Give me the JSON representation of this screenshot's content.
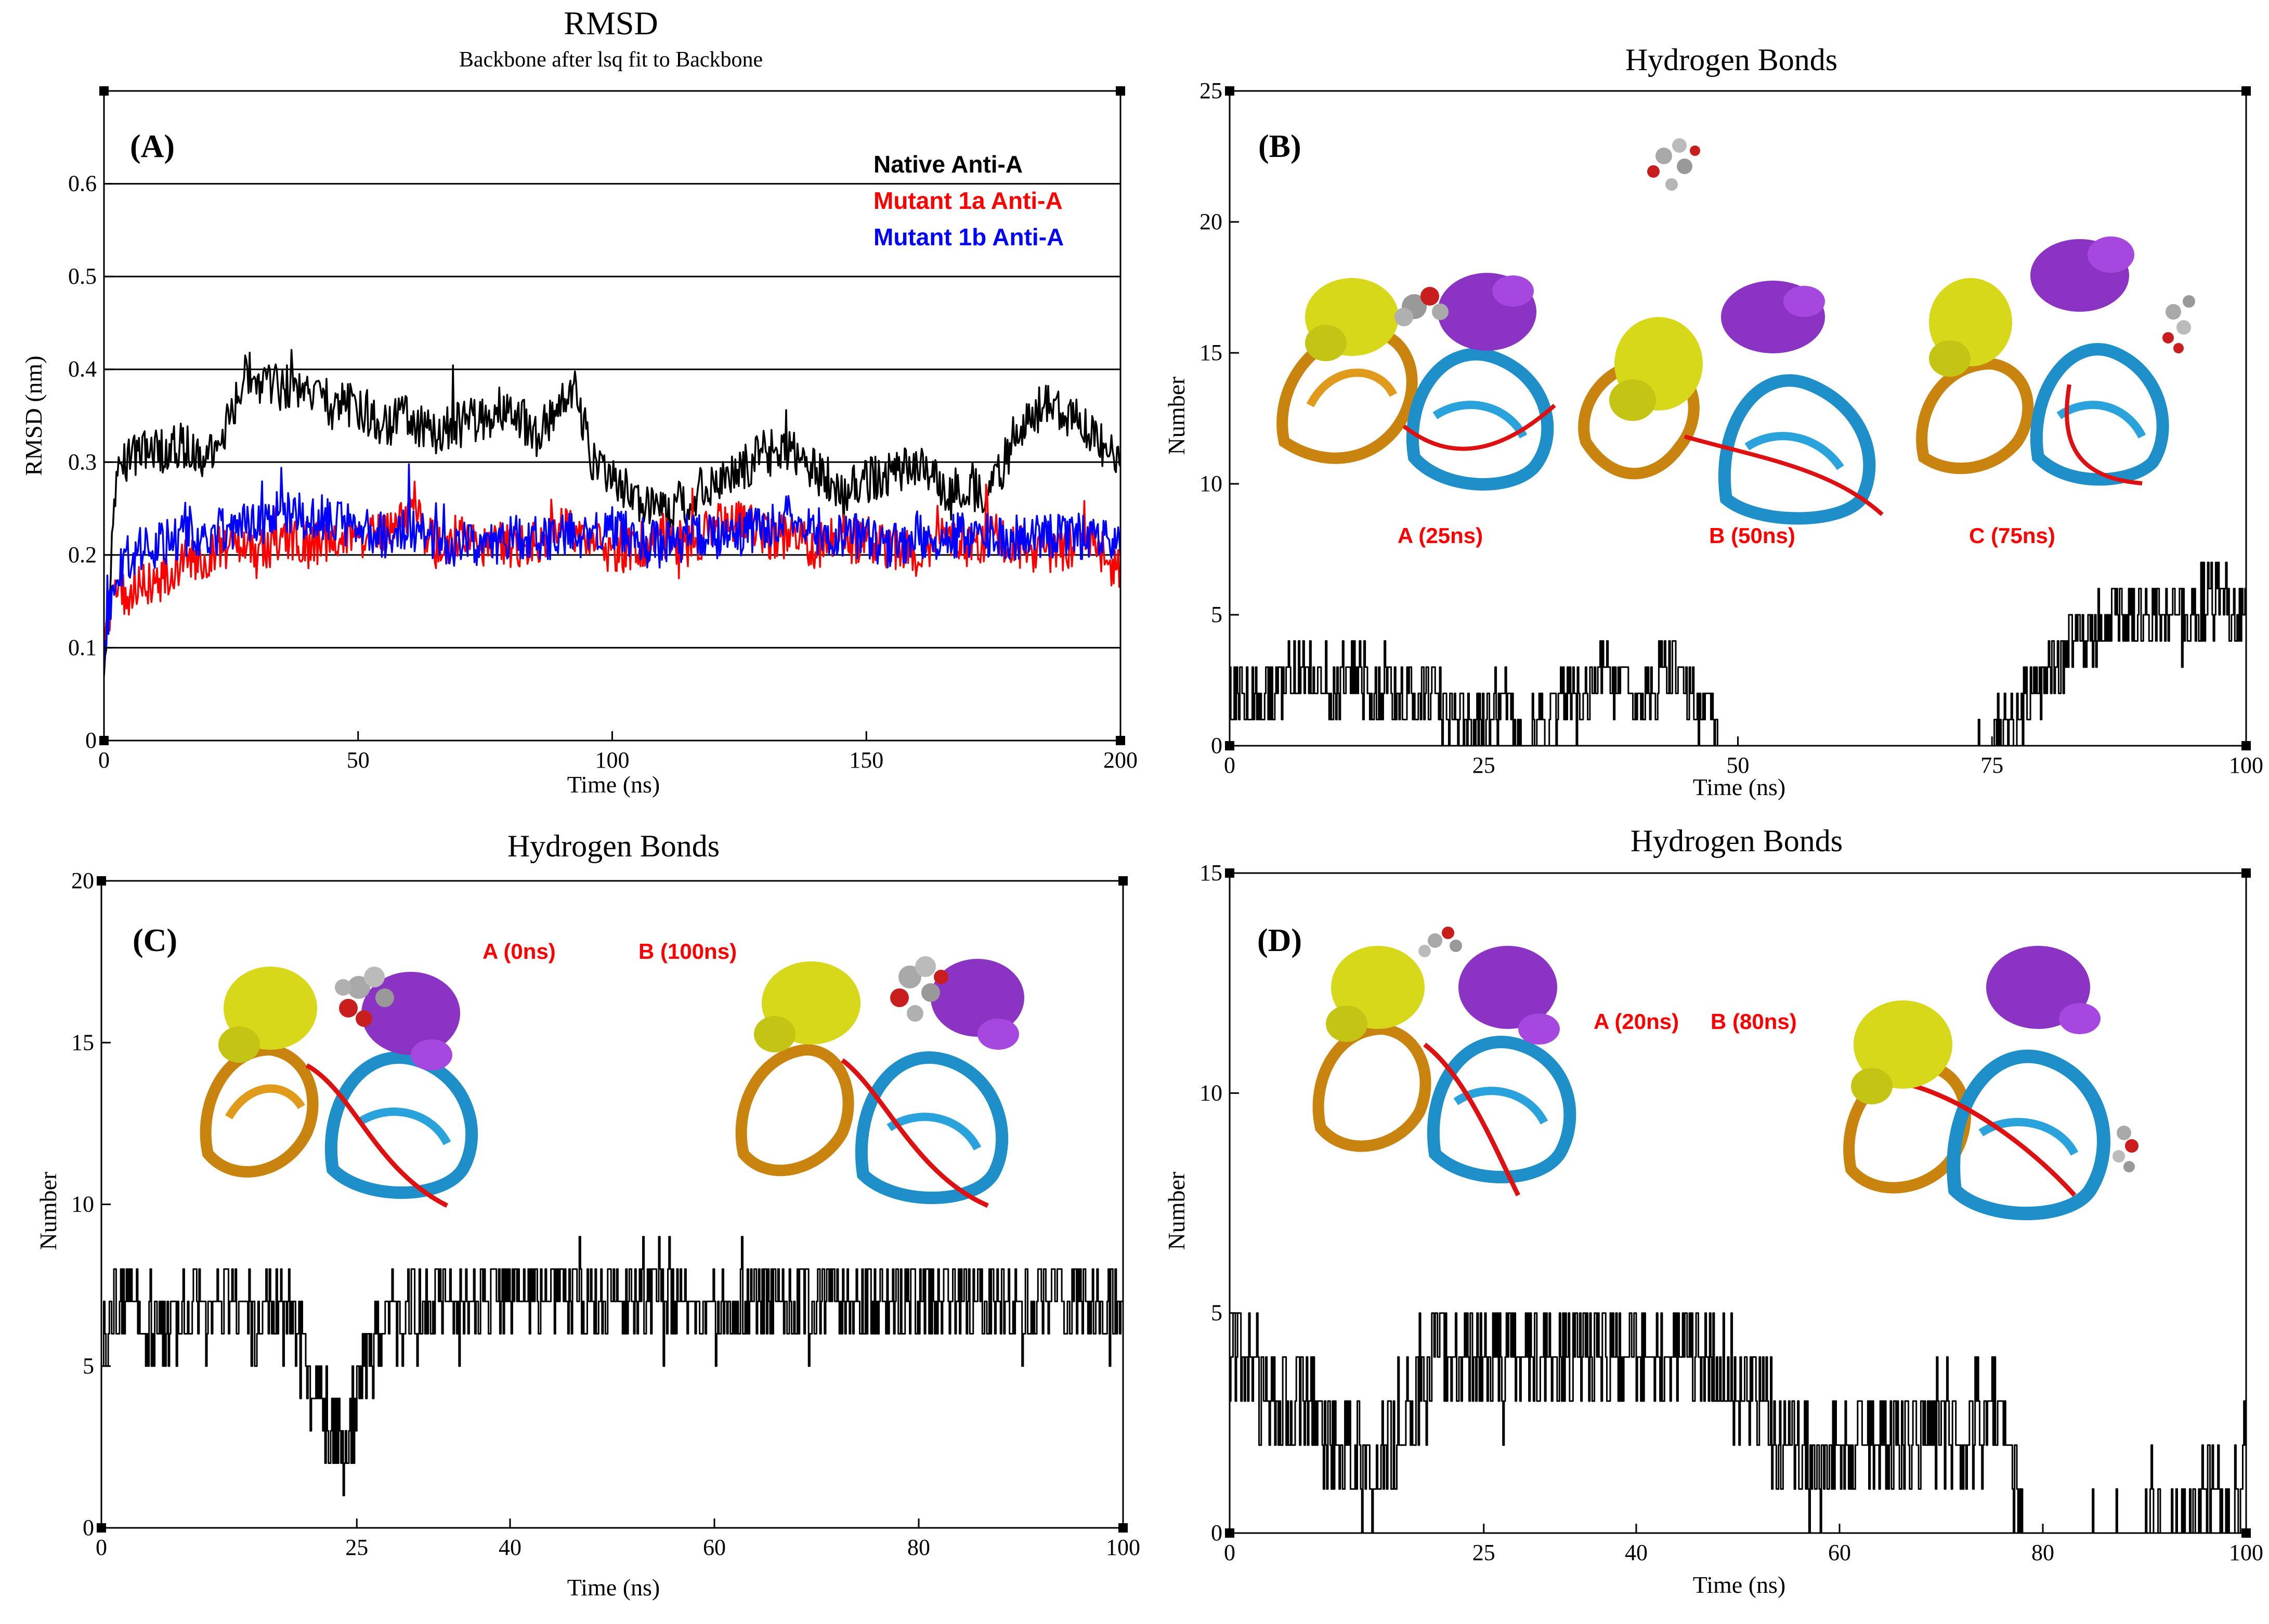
{
  "chart_data": [
    {
      "panel": "(A)",
      "type": "line",
      "title": "RMSD",
      "subtitle": "Backbone after lsq fit to Backbone",
      "xlabel": "Time (ns)",
      "ylabel": "RMSD (nm)",
      "xlim": [
        0,
        200
      ],
      "ylim": [
        0,
        0.7
      ],
      "xticks": [
        0,
        50,
        100,
        150,
        200
      ],
      "yticks": [
        0,
        0.1,
        0.2,
        0.3,
        0.4,
        0.5,
        0.6
      ],
      "ytick_labels": [
        "0",
        "0.1",
        "0.2",
        "0.3",
        "0.4",
        "0.5",
        "0.6"
      ],
      "gridlines_y": [
        0.1,
        0.2,
        0.3,
        0.4,
        0.5,
        0.6
      ],
      "legend": [
        {
          "label": "Native Anti-A",
          "color": "#000000"
        },
        {
          "label": "Mutant 1a Anti-A",
          "color": "#ff0000"
        },
        {
          "label": "Mutant 1b Anti-A",
          "color": "#0000ff"
        }
      ],
      "series": [
        {
          "name": "Native Anti-A",
          "color": "#000000",
          "x": [
            0,
            2,
            5,
            10,
            15,
            20,
            25,
            28,
            30,
            35,
            40,
            45,
            50,
            55,
            60,
            65,
            70,
            75,
            80,
            85,
            90,
            93,
            96,
            100,
            105,
            110,
            115,
            120,
            125,
            130,
            135,
            140,
            145,
            150,
            155,
            160,
            165,
            170,
            175,
            180,
            185,
            190,
            195,
            200
          ],
          "y": [
            0.05,
            0.27,
            0.31,
            0.31,
            0.32,
            0.3,
            0.35,
            0.4,
            0.39,
            0.38,
            0.38,
            0.36,
            0.36,
            0.34,
            0.35,
            0.33,
            0.34,
            0.35,
            0.36,
            0.33,
            0.36,
            0.38,
            0.3,
            0.28,
            0.26,
            0.25,
            0.26,
            0.28,
            0.29,
            0.31,
            0.31,
            0.29,
            0.27,
            0.28,
            0.29,
            0.3,
            0.27,
            0.27,
            0.27,
            0.34,
            0.36,
            0.35,
            0.33,
            0.29
          ]
        },
        {
          "name": "Mutant 1a Anti-A",
          "color": "#ff0000",
          "x": [
            0,
            2,
            5,
            10,
            15,
            20,
            25,
            30,
            35,
            40,
            45,
            50,
            55,
            60,
            65,
            70,
            75,
            80,
            85,
            90,
            95,
            100,
            105,
            110,
            115,
            120,
            125,
            130,
            135,
            140,
            145,
            150,
            155,
            160,
            165,
            170,
            175,
            180,
            185,
            190,
            195,
            200
          ],
          "y": [
            0.1,
            0.15,
            0.16,
            0.17,
            0.19,
            0.2,
            0.21,
            0.2,
            0.22,
            0.21,
            0.22,
            0.22,
            0.22,
            0.25,
            0.21,
            0.22,
            0.21,
            0.21,
            0.21,
            0.23,
            0.22,
            0.2,
            0.21,
            0.22,
            0.21,
            0.23,
            0.24,
            0.22,
            0.22,
            0.21,
            0.22,
            0.21,
            0.21,
            0.2,
            0.22,
            0.21,
            0.22,
            0.21,
            0.2,
            0.21,
            0.21,
            0.18
          ]
        },
        {
          "name": "Mutant 1b Anti-A",
          "color": "#0000ff",
          "x": [
            0,
            2,
            5,
            10,
            15,
            20,
            25,
            30,
            35,
            40,
            45,
            50,
            55,
            60,
            65,
            70,
            75,
            80,
            85,
            90,
            95,
            100,
            105,
            110,
            115,
            120,
            125,
            130,
            135,
            140,
            145,
            150,
            155,
            160,
            165,
            170,
            175,
            180,
            185,
            190,
            195,
            200
          ],
          "y": [
            0.1,
            0.18,
            0.2,
            0.21,
            0.22,
            0.22,
            0.23,
            0.23,
            0.25,
            0.24,
            0.24,
            0.23,
            0.22,
            0.23,
            0.22,
            0.21,
            0.21,
            0.22,
            0.22,
            0.22,
            0.22,
            0.23,
            0.22,
            0.21,
            0.22,
            0.22,
            0.22,
            0.23,
            0.24,
            0.23,
            0.22,
            0.22,
            0.21,
            0.22,
            0.22,
            0.22,
            0.22,
            0.22,
            0.22,
            0.22,
            0.22,
            0.21
          ]
        }
      ]
    },
    {
      "panel": "(B)",
      "type": "line",
      "title": "Hydrogen Bonds",
      "xlabel": "Time (ns)",
      "ylabel": "Number",
      "xlim": [
        0,
        100
      ],
      "ylim": [
        0,
        25
      ],
      "xticks": [
        0,
        25,
        50,
        75,
        100
      ],
      "yticks": [
        0,
        5,
        10,
        15,
        20,
        25
      ],
      "snapshots": [
        "A (25ns)",
        "B (50ns)",
        "C (75ns)"
      ],
      "series": [
        {
          "name": "Hydrogen Bonds",
          "color": "#000000",
          "x": [
            0,
            2,
            4,
            6,
            8,
            10,
            12,
            14,
            16,
            18,
            20,
            22,
            24,
            26,
            27,
            28,
            29,
            33,
            35,
            37,
            39,
            41,
            43,
            45,
            47,
            48,
            52,
            75,
            77,
            79,
            81,
            83,
            85,
            87,
            89,
            91,
            93,
            95,
            97,
            99,
            100
          ],
          "y": [
            2,
            2,
            2,
            3,
            3,
            2,
            3,
            2,
            2,
            2,
            2,
            1,
            1,
            1,
            2,
            1,
            0,
            2,
            2,
            3,
            2,
            2,
            3,
            2,
            1,
            0,
            0,
            0,
            1,
            2,
            3,
            4,
            4,
            5,
            5,
            5,
            5,
            5,
            6,
            5,
            5
          ]
        }
      ]
    },
    {
      "panel": "(C)",
      "type": "line",
      "title": "Hydrogen Bonds",
      "xlabel": "Time (ns)",
      "ylabel": "Number",
      "xlim": [
        0,
        100
      ],
      "ylim": [
        0,
        20
      ],
      "xticks": [
        0,
        25,
        40,
        60,
        80,
        100
      ],
      "yticks": [
        0,
        5,
        10,
        15,
        20
      ],
      "snapshots": [
        "A (0ns)",
        "B (100ns)"
      ],
      "series": [
        {
          "name": "Hydrogen Bonds",
          "color": "#000000",
          "x": [
            0,
            3,
            6,
            9,
            12,
            15,
            17,
            19,
            21,
            22,
            23,
            24,
            25,
            27,
            30,
            35,
            40,
            45,
            50,
            55,
            60,
            65,
            70,
            75,
            80,
            85,
            90,
            95,
            100
          ],
          "y": [
            6,
            7,
            6,
            7,
            7,
            6,
            7,
            6,
            4,
            3,
            3,
            2,
            4,
            6,
            7,
            7,
            7,
            7,
            7,
            7,
            7,
            7,
            7,
            7,
            7,
            7,
            7,
            7,
            7
          ]
        }
      ]
    },
    {
      "panel": "(D)",
      "type": "line",
      "title": "Hydrogen Bonds",
      "xlabel": "Time (ns)",
      "ylabel": "Number",
      "xlim": [
        0,
        100
      ],
      "ylim": [
        0,
        15
      ],
      "xticks": [
        0,
        25,
        40,
        60,
        80,
        100
      ],
      "yticks": [
        0,
        5,
        10,
        15
      ],
      "snapshots": [
        "A (20ns)",
        "B (80ns)"
      ],
      "series": [
        {
          "name": "Hydrogen Bonds",
          "color": "#000000",
          "x": [
            0,
            2,
            4,
            6,
            8,
            10,
            12,
            14,
            16,
            18,
            20,
            25,
            30,
            35,
            40,
            45,
            48,
            50,
            52,
            54,
            56,
            58,
            60,
            62,
            64,
            66,
            68,
            70,
            72,
            75,
            77,
            78,
            90,
            91,
            92,
            99,
            100
          ],
          "y": [
            4,
            4,
            3,
            3,
            3,
            2,
            2,
            1,
            2,
            3,
            4,
            4,
            4,
            4,
            4,
            4,
            4,
            3,
            3,
            2,
            2,
            1,
            2,
            2,
            2,
            2,
            2,
            3,
            2,
            3,
            2,
            0,
            0,
            1,
            0,
            1,
            2
          ]
        }
      ]
    }
  ]
}
